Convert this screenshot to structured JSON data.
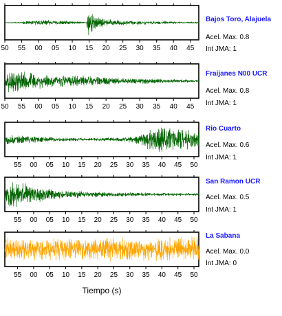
{
  "chart_data": {
    "type": "line",
    "xlabel": "Tiempo (s)",
    "panels": [
      {
        "station": "Bajos Toro, Alajuela",
        "accel_label": "Acel. Max. 0.8",
        "jma_label": "Int JMA: 1",
        "color": "#006400",
        "ticks": [
          "50",
          "55",
          "00",
          "05",
          "10",
          "15",
          "20",
          "25",
          "30",
          "35",
          "40",
          "45"
        ],
        "tick_first_sec": 50,
        "x_start_sec": 50,
        "x_end_sec": 107.5,
        "envelope": [
          [
            50,
            0.02
          ],
          [
            54,
            0.06
          ],
          [
            57,
            0.12
          ],
          [
            62,
            0.2
          ],
          [
            70,
            0.1
          ],
          [
            74,
            0.04
          ],
          [
            75,
            1.0
          ],
          [
            76,
            0.7
          ],
          [
            78,
            0.35
          ],
          [
            82,
            0.18
          ],
          [
            90,
            0.12
          ],
          [
            100,
            0.08
          ],
          [
            107.5,
            0.05
          ]
        ],
        "signal_seed": 11
      },
      {
        "station": "Fraijanes N00 UCR",
        "accel_label": "Acel. Max. 0.8",
        "jma_label": "Int JMA: 1",
        "color": "#006400",
        "ticks": [
          "50",
          "55",
          "00",
          "05",
          "10",
          "15",
          "20",
          "25",
          "30",
          "35",
          "40",
          "45"
        ],
        "tick_first_sec": 50,
        "x_start_sec": 50,
        "x_end_sec": 107.5,
        "envelope": [
          [
            50,
            0.05
          ],
          [
            50.6,
            0.95
          ],
          [
            52,
            0.75
          ],
          [
            56,
            0.6
          ],
          [
            62,
            0.45
          ],
          [
            70,
            0.38
          ],
          [
            80,
            0.28
          ],
          [
            90,
            0.18
          ],
          [
            100,
            0.12
          ],
          [
            107.5,
            0.08
          ]
        ],
        "signal_seed": 23
      },
      {
        "station": "Rio Cuarto",
        "accel_label": "Acel. Max. 0.6",
        "jma_label": "Int JMA: 1",
        "color": "#006400",
        "ticks": [
          "55",
          "00",
          "05",
          "10",
          "15",
          "20",
          "25",
          "30",
          "35",
          "40",
          "45",
          "50"
        ],
        "tick_first_sec": 55,
        "x_start_sec": 51,
        "x_end_sec": 111.5,
        "envelope": [
          [
            51,
            0.35
          ],
          [
            56,
            0.3
          ],
          [
            62,
            0.2
          ],
          [
            70,
            0.12
          ],
          [
            80,
            0.1
          ],
          [
            88,
            0.15
          ],
          [
            93,
            0.35
          ],
          [
            96,
            0.7
          ],
          [
            99,
            1.0
          ],
          [
            103,
            0.9
          ],
          [
            107,
            0.75
          ],
          [
            111.5,
            0.55
          ]
        ],
        "signal_seed": 37
      },
      {
        "station": "San Ramon UCR",
        "accel_label": "Acel. Max. 0.5",
        "jma_label": "Int JMA: 1",
        "color": "#006400",
        "ticks": [
          "55",
          "00",
          "05",
          "10",
          "15",
          "20",
          "25",
          "30",
          "35",
          "40",
          "45",
          "50"
        ],
        "tick_first_sec": 55,
        "x_start_sec": 51,
        "x_end_sec": 111.5,
        "envelope": [
          [
            51,
            0.5
          ],
          [
            52.5,
            1.0
          ],
          [
            56,
            0.8
          ],
          [
            60,
            0.55
          ],
          [
            65,
            0.38
          ],
          [
            72,
            0.25
          ],
          [
            80,
            0.18
          ],
          [
            90,
            0.13
          ],
          [
            100,
            0.1
          ],
          [
            111.5,
            0.08
          ]
        ],
        "signal_seed": 53
      },
      {
        "station": "La Sabana",
        "accel_label": "Acel. Max. 0.0",
        "jma_label": "Int JMA: 0",
        "color": "#FFA500",
        "ticks": [
          "55",
          "00",
          "05",
          "10",
          "15",
          "20",
          "25",
          "30",
          "35",
          "40",
          "45",
          "50"
        ],
        "tick_first_sec": 55,
        "x_start_sec": 51,
        "x_end_sec": 111.5,
        "envelope": [
          [
            51,
            0.8
          ],
          [
            111.5,
            0.8
          ]
        ],
        "signal_seed": 71
      }
    ]
  }
}
